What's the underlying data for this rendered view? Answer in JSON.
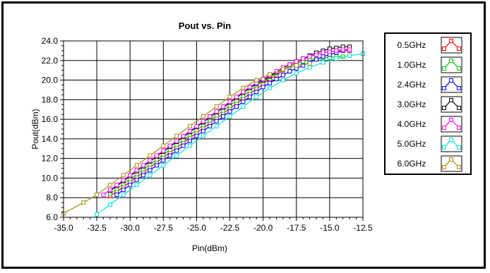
{
  "chart_data": {
    "type": "line",
    "title": "Pout vs. Pin",
    "xlabel": "Pin(dBm)",
    "ylabel": "Pout(dBm)",
    "xlim": [
      -35.0,
      -12.5
    ],
    "ylim": [
      6.0,
      24.0
    ],
    "xticks": [
      "-35.0",
      "-32.5",
      "-30.0",
      "-27.5",
      "-25.0",
      "-22.5",
      "-20.0",
      "-17.5",
      "-15.0",
      "-12.5"
    ],
    "yticks": [
      "6.0",
      "8.0",
      "10.0",
      "12.0",
      "14.0",
      "16.0",
      "18.0",
      "20.0",
      "22.0",
      "24.0"
    ],
    "grid": true,
    "legend_position": "right",
    "series": [
      {
        "name": "0.5GHz",
        "color": "#ff0000",
        "x": [
          -31.5,
          -31.0,
          -30.5,
          -30.0,
          -29.5,
          -29.0,
          -28.5,
          -28.0,
          -27.5,
          -27.0,
          -26.5,
          -26.0,
          -25.5,
          -25.0,
          -24.5,
          -24.0,
          -23.5,
          -23.0,
          -22.5,
          -22.0,
          -21.5,
          -21.0,
          -20.5,
          -20.0,
          -19.5,
          -19.0,
          -18.5,
          -18.0,
          -17.5,
          -17.0,
          -16.5,
          -16.0,
          -15.5,
          -15.0,
          -14.5,
          -14.0,
          -13.5
        ],
        "y": [
          8.2,
          8.6,
          9.1,
          9.6,
          10.1,
          10.6,
          11.1,
          11.6,
          12.1,
          12.6,
          13.1,
          13.6,
          14.1,
          14.6,
          15.1,
          15.6,
          16.1,
          16.6,
          17.1,
          17.6,
          18.1,
          18.6,
          19.1,
          19.6,
          20.1,
          20.5,
          21.0,
          21.4,
          21.8,
          22.1,
          22.4,
          22.6,
          22.8,
          22.9,
          23.0,
          23.0,
          23.0
        ]
      },
      {
        "name": "1.0GHz",
        "color": "#00c800",
        "x": [
          -31.5,
          -31.0,
          -30.5,
          -30.0,
          -29.5,
          -29.0,
          -28.5,
          -28.0,
          -27.5,
          -27.0,
          -26.5,
          -26.0,
          -25.5,
          -25.0,
          -24.5,
          -24.0,
          -23.5,
          -23.0,
          -22.5,
          -22.0,
          -21.5,
          -21.0,
          -20.5,
          -20.0,
          -19.5,
          -19.0,
          -18.5,
          -18.0,
          -17.5,
          -17.0,
          -16.5,
          -16.0,
          -15.5,
          -15.0,
          -14.5,
          -14.0
        ],
        "y": [
          8.4,
          8.9,
          9.4,
          9.9,
          10.4,
          10.9,
          11.4,
          11.9,
          12.4,
          12.9,
          13.4,
          13.9,
          14.4,
          14.9,
          15.4,
          15.9,
          16.4,
          16.9,
          17.4,
          17.9,
          18.4,
          18.9,
          19.4,
          19.9,
          20.3,
          20.7,
          21.1,
          21.4,
          21.7,
          21.9,
          22.1,
          22.2,
          22.3,
          22.3,
          22.4,
          22.4
        ]
      },
      {
        "name": "2.4GHz",
        "color": "#0000ff",
        "x": [
          -31.0,
          -30.5,
          -30.0,
          -29.5,
          -29.0,
          -28.5,
          -28.0,
          -27.5,
          -27.0,
          -26.5,
          -26.0,
          -25.5,
          -25.0,
          -24.5,
          -24.0,
          -23.5,
          -23.0,
          -22.5,
          -22.0,
          -21.5,
          -21.0,
          -20.5,
          -20.0,
          -19.5,
          -19.0,
          -18.5,
          -18.0,
          -17.5,
          -17.0,
          -16.5,
          -16.0,
          -15.5,
          -15.0,
          -14.5,
          -14.0,
          -13.5
        ],
        "y": [
          8.3,
          8.8,
          9.3,
          9.8,
          10.3,
          10.8,
          11.3,
          11.8,
          12.3,
          12.8,
          13.3,
          13.8,
          14.3,
          14.8,
          15.3,
          15.8,
          16.3,
          16.8,
          17.3,
          17.8,
          18.3,
          18.8,
          19.3,
          19.7,
          20.1,
          20.5,
          20.9,
          21.2,
          21.5,
          21.8,
          22.1,
          22.4,
          22.6,
          22.8,
          23.0,
          23.2
        ]
      },
      {
        "name": "3.0GHz",
        "color": "#000000",
        "x": [
          -31.5,
          -31.0,
          -30.5,
          -30.0,
          -29.5,
          -29.0,
          -28.5,
          -28.0,
          -27.5,
          -27.0,
          -26.5,
          -26.0,
          -25.5,
          -25.0,
          -24.5,
          -24.0,
          -23.5,
          -23.0,
          -22.5,
          -22.0,
          -21.5,
          -21.0,
          -20.5,
          -20.0,
          -19.5,
          -19.0,
          -18.5,
          -18.0,
          -17.5,
          -17.0,
          -16.5,
          -16.0,
          -15.5,
          -15.0,
          -14.5,
          -14.0,
          -13.5
        ],
        "y": [
          8.7,
          9.2,
          9.7,
          10.2,
          10.7,
          11.2,
          11.7,
          12.2,
          12.7,
          13.2,
          13.7,
          14.2,
          14.7,
          15.2,
          15.7,
          16.2,
          16.7,
          17.2,
          17.7,
          18.2,
          18.7,
          19.2,
          19.6,
          20.0,
          20.4,
          20.8,
          21.2,
          21.6,
          21.9,
          22.2,
          22.5,
          22.8,
          23.0,
          23.2,
          23.3,
          23.4,
          23.4
        ]
      },
      {
        "name": "4.0GHz",
        "color": "#ff00ff",
        "x": [
          -32.0,
          -31.5,
          -31.0,
          -30.5,
          -30.0,
          -29.5,
          -29.0,
          -28.5,
          -28.0,
          -27.5,
          -27.0,
          -26.5,
          -26.0,
          -25.5,
          -25.0,
          -24.5,
          -24.0,
          -23.5,
          -23.0,
          -22.5,
          -22.0,
          -21.5,
          -21.0,
          -20.5,
          -20.0,
          -19.5,
          -19.0,
          -18.5,
          -18.0,
          -17.5,
          -17.0,
          -16.5,
          -16.0,
          -15.5,
          -15.0,
          -14.5,
          -14.0,
          -13.5
        ],
        "y": [
          8.3,
          8.8,
          9.3,
          9.8,
          10.3,
          10.8,
          11.3,
          11.8,
          12.3,
          12.8,
          13.3,
          13.8,
          14.3,
          14.8,
          15.3,
          15.8,
          16.3,
          16.8,
          17.3,
          17.8,
          18.3,
          18.8,
          19.3,
          19.7,
          20.1,
          20.5,
          20.9,
          21.3,
          21.6,
          21.9,
          22.2,
          22.4,
          22.6,
          22.8,
          22.9,
          23.0,
          23.1,
          23.1
        ]
      },
      {
        "name": "5.0GHz",
        "color": "#00e0e0",
        "x": [
          -32.5,
          -31.5,
          -30.5,
          -29.5,
          -28.5,
          -27.5,
          -26.5,
          -25.5,
          -24.5,
          -23.5,
          -22.5,
          -21.5,
          -20.5,
          -19.5,
          -18.5,
          -17.5,
          -16.5,
          -15.5,
          -14.5,
          -13.5,
          -12.5
        ],
        "y": [
          6.3,
          7.3,
          8.3,
          9.3,
          10.3,
          11.3,
          12.3,
          13.3,
          14.3,
          15.3,
          16.3,
          17.3,
          18.3,
          19.2,
          20.0,
          20.7,
          21.3,
          21.8,
          22.2,
          22.5,
          22.7
        ]
      },
      {
        "name": "6.0GHz",
        "color": "#a09010",
        "x": [
          -35.0,
          -33.5,
          -32.5,
          -31.5,
          -30.5,
          -29.5,
          -28.5,
          -27.5,
          -26.5,
          -25.5,
          -24.5,
          -23.5,
          -22.5,
          -21.5,
          -20.5,
          -19.5,
          -18.5,
          -17.5,
          -16.5
        ],
        "y": [
          6.4,
          7.5,
          8.3,
          9.3,
          10.3,
          11.3,
          12.3,
          13.3,
          14.3,
          15.3,
          16.3,
          17.3,
          18.3,
          19.2,
          20.0,
          20.6,
          21.1,
          21.5,
          21.7
        ]
      }
    ]
  }
}
